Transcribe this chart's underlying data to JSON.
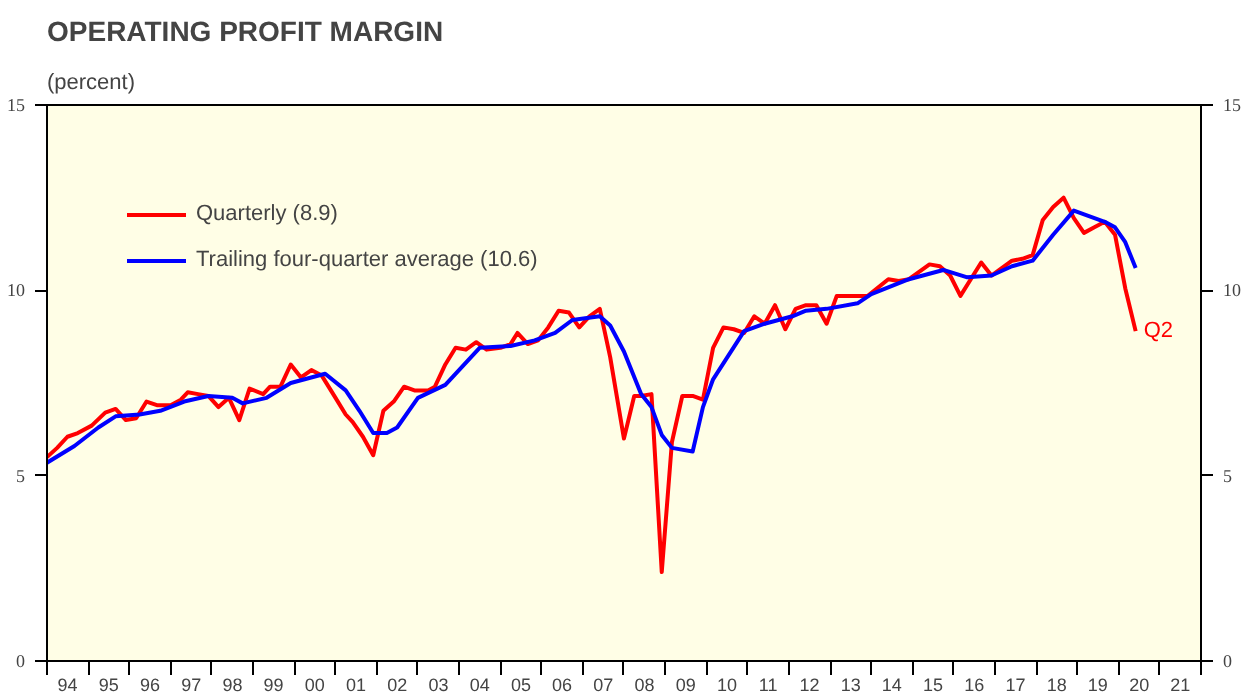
{
  "chart_data": {
    "type": "line",
    "title": "OPERATING PROFIT MARGIN",
    "subtitle": "(percent)",
    "xlim": [
      "1994-01-01",
      "2022-01-01"
    ],
    "ylim": [
      0,
      15
    ],
    "yticks": [
      0,
      5,
      10,
      15
    ],
    "y2lim": [
      0,
      15
    ],
    "y2ticks": [
      0,
      5,
      10,
      15
    ],
    "xticks": [
      {
        "value": "1994-01-01",
        "label": null
      },
      {
        "value": "1994-07-02",
        "label": "94"
      },
      {
        "value": "1995-01-01",
        "label": null
      },
      {
        "value": "1995-07-02",
        "label": "95"
      },
      {
        "value": "1996-01-01",
        "label": null
      },
      {
        "value": "1996-07-02",
        "label": "96"
      },
      {
        "value": "1997-01-01",
        "label": null
      },
      {
        "value": "1997-07-02",
        "label": "97"
      },
      {
        "value": "1998-01-01",
        "label": null
      },
      {
        "value": "1998-07-02",
        "label": "98"
      },
      {
        "value": "1999-01-01",
        "label": null
      },
      {
        "value": "1999-07-02",
        "label": "99"
      },
      {
        "value": "2000-01-01",
        "label": null
      },
      {
        "value": "2000-07-02",
        "label": "00"
      },
      {
        "value": "2001-01-01",
        "label": null
      },
      {
        "value": "2001-07-02",
        "label": "01"
      },
      {
        "value": "2002-01-01",
        "label": null
      },
      {
        "value": "2002-07-02",
        "label": "02"
      },
      {
        "value": "2003-01-01",
        "label": null
      },
      {
        "value": "2003-07-02",
        "label": "03"
      },
      {
        "value": "2004-01-01",
        "label": null
      },
      {
        "value": "2004-07-02",
        "label": "04"
      },
      {
        "value": "2005-01-01",
        "label": null
      },
      {
        "value": "2005-07-02",
        "label": "05"
      },
      {
        "value": "2006-01-01",
        "label": null
      },
      {
        "value": "2006-07-02",
        "label": "06"
      },
      {
        "value": "2007-01-01",
        "label": null
      },
      {
        "value": "2007-07-02",
        "label": "07"
      },
      {
        "value": "2008-01-01",
        "label": null
      },
      {
        "value": "2008-07-02",
        "label": "08"
      },
      {
        "value": "2009-01-01",
        "label": null
      },
      {
        "value": "2009-07-02",
        "label": "09"
      },
      {
        "value": "2010-01-01",
        "label": null
      },
      {
        "value": "2010-07-02",
        "label": "10"
      },
      {
        "value": "2011-01-01",
        "label": null
      },
      {
        "value": "2011-07-02",
        "label": "11"
      },
      {
        "value": "2012-01-01",
        "label": null
      },
      {
        "value": "2012-07-02",
        "label": "12"
      },
      {
        "value": "2013-01-01",
        "label": null
      },
      {
        "value": "2013-07-02",
        "label": "13"
      },
      {
        "value": "2014-01-01",
        "label": null
      },
      {
        "value": "2014-07-02",
        "label": "14"
      },
      {
        "value": "2015-01-01",
        "label": null
      },
      {
        "value": "2015-07-02",
        "label": "15"
      },
      {
        "value": "2016-01-01",
        "label": null
      },
      {
        "value": "2016-07-02",
        "label": "16"
      },
      {
        "value": "2017-01-01",
        "label": null
      },
      {
        "value": "2017-07-02",
        "label": "17"
      },
      {
        "value": "2018-01-01",
        "label": null
      },
      {
        "value": "2018-07-02",
        "label": "18"
      },
      {
        "value": "2019-01-01",
        "label": null
      },
      {
        "value": "2019-07-02",
        "label": "19"
      },
      {
        "value": "2020-01-01",
        "label": null
      },
      {
        "value": "2020-07-02",
        "label": "20"
      },
      {
        "value": "2021-01-01",
        "label": null
      },
      {
        "value": "2021-07-02",
        "label": "21"
      },
      {
        "value": "2022-01-01",
        "label": null
      }
    ],
    "grid": false,
    "legend": "top left",
    "line_style": "solid",
    "marker": "none",
    "annotations": [
      {
        "text": "Q2",
        "x": "2020-06",
        "y": 8.9
      }
    ],
    "series": [
      {
        "name": "Quarterly (8.9)",
        "color": "#ff0000",
        "x": [
          "1994-01",
          "1994-04",
          "1994-07",
          "1994-10",
          "1995-02",
          "1995-06",
          "1995-09",
          "1995-12",
          "1996-03",
          "1996-06",
          "1996-09",
          "1997-01",
          "1997-04",
          "1997-06",
          "1997-09",
          "1997-12",
          "1998-03",
          "1998-06",
          "1998-09",
          "1998-12",
          "1999-04",
          "1999-06",
          "1999-09",
          "1999-12",
          "2000-03",
          "2000-06",
          "2000-09",
          "2001-01",
          "2001-04",
          "2001-06",
          "2001-09",
          "2001-12",
          "2002-03",
          "2002-06",
          "2002-09",
          "2002-12",
          "2003-04",
          "2003-06",
          "2003-09",
          "2003-12",
          "2004-03",
          "2004-06",
          "2004-09",
          "2005-01",
          "2005-04",
          "2005-06",
          "2005-09",
          "2005-12",
          "2006-03",
          "2006-06",
          "2006-09",
          "2006-12",
          "2007-03",
          "2007-06",
          "2007-09",
          "2008-01",
          "2008-04",
          "2008-06",
          "2008-09",
          "2008-12",
          "2009-03",
          "2009-06",
          "2009-09",
          "2009-12",
          "2010-03",
          "2010-06",
          "2010-09",
          "2010-12",
          "2011-03",
          "2011-06",
          "2011-09",
          "2011-12",
          "2012-03",
          "2012-06",
          "2012-09",
          "2012-12",
          "2013-03",
          "2013-06",
          "2013-09",
          "2013-12",
          "2014-06",
          "2014-09",
          "2014-12",
          "2015-06",
          "2015-09",
          "2015-12",
          "2016-03",
          "2016-09",
          "2016-12",
          "2017-06",
          "2017-09",
          "2017-12",
          "2018-03",
          "2018-06",
          "2018-09",
          "2018-12",
          "2019-03",
          "2019-06",
          "2019-09",
          "2019-12",
          "2020-03",
          "2020-06"
        ],
        "values": [
          5.5,
          5.75,
          6.05,
          6.15,
          6.35,
          6.7,
          6.8,
          6.5,
          6.55,
          7.0,
          6.9,
          6.9,
          7.05,
          7.25,
          7.2,
          7.15,
          6.85,
          7.1,
          6.5,
          7.35,
          7.2,
          7.4,
          7.4,
          8.0,
          7.65,
          7.85,
          7.7,
          7.1,
          6.65,
          6.45,
          6.05,
          5.55,
          6.75,
          7.0,
          7.4,
          7.3,
          7.3,
          7.4,
          8.0,
          8.45,
          8.4,
          8.6,
          8.4,
          8.45,
          8.55,
          8.85,
          8.55,
          8.65,
          9.0,
          9.45,
          9.4,
          9.0,
          9.3,
          9.5,
          8.2,
          6.0,
          7.15,
          7.15,
          7.2,
          2.4,
          5.9,
          7.15,
          7.15,
          7.05,
          8.45,
          9.0,
          8.95,
          8.85,
          9.3,
          9.1,
          9.6,
          8.95,
          9.5,
          9.6,
          9.6,
          9.1,
          9.85,
          9.85,
          9.85,
          9.85,
          10.3,
          10.25,
          10.3,
          10.7,
          10.65,
          10.4,
          9.85,
          10.75,
          10.4,
          10.8,
          10.85,
          10.95,
          11.9,
          12.25,
          12.5,
          11.95,
          11.55,
          11.7,
          11.85,
          11.5,
          10.05,
          8.9
        ]
      },
      {
        "name": "Trailing four-quarter average (10.6)",
        "color": "#0000ff",
        "x": [
          "1994-01",
          "1994-09",
          "1995-04",
          "1995-09",
          "1996-04",
          "1996-10",
          "1997-05",
          "1997-12",
          "1998-07",
          "1998-10",
          "1999-05",
          "1999-12",
          "2000-10",
          "2001-04",
          "2001-08",
          "2001-12",
          "2002-04",
          "2002-07",
          "2003-01",
          "2003-09",
          "2004-07",
          "2005-04",
          "2005-11",
          "2006-05",
          "2006-10",
          "2007-06",
          "2007-09",
          "2008-01",
          "2008-06",
          "2008-09",
          "2008-12",
          "2009-03",
          "2009-09",
          "2009-12",
          "2010-03",
          "2010-12",
          "2011-06",
          "2012-02",
          "2012-06",
          "2012-12",
          "2013-09",
          "2014-01",
          "2014-12",
          "2015-10",
          "2016-05",
          "2016-12",
          "2017-06",
          "2017-12",
          "2018-06",
          "2018-12",
          "2019-09",
          "2019-12",
          "2020-03",
          "2020-06"
        ],
        "values": [
          5.35,
          5.8,
          6.3,
          6.6,
          6.65,
          6.75,
          7.0,
          7.15,
          7.1,
          6.95,
          7.1,
          7.5,
          7.75,
          7.3,
          6.75,
          6.15,
          6.15,
          6.3,
          7.1,
          7.45,
          8.45,
          8.5,
          8.65,
          8.85,
          9.2,
          9.3,
          9.05,
          8.35,
          7.2,
          6.85,
          6.1,
          5.75,
          5.65,
          6.85,
          7.6,
          8.9,
          9.1,
          9.3,
          9.45,
          9.5,
          9.65,
          9.9,
          10.3,
          10.55,
          10.35,
          10.4,
          10.65,
          10.8,
          11.5,
          12.15,
          11.85,
          11.7,
          11.3,
          10.6
        ]
      }
    ]
  }
}
